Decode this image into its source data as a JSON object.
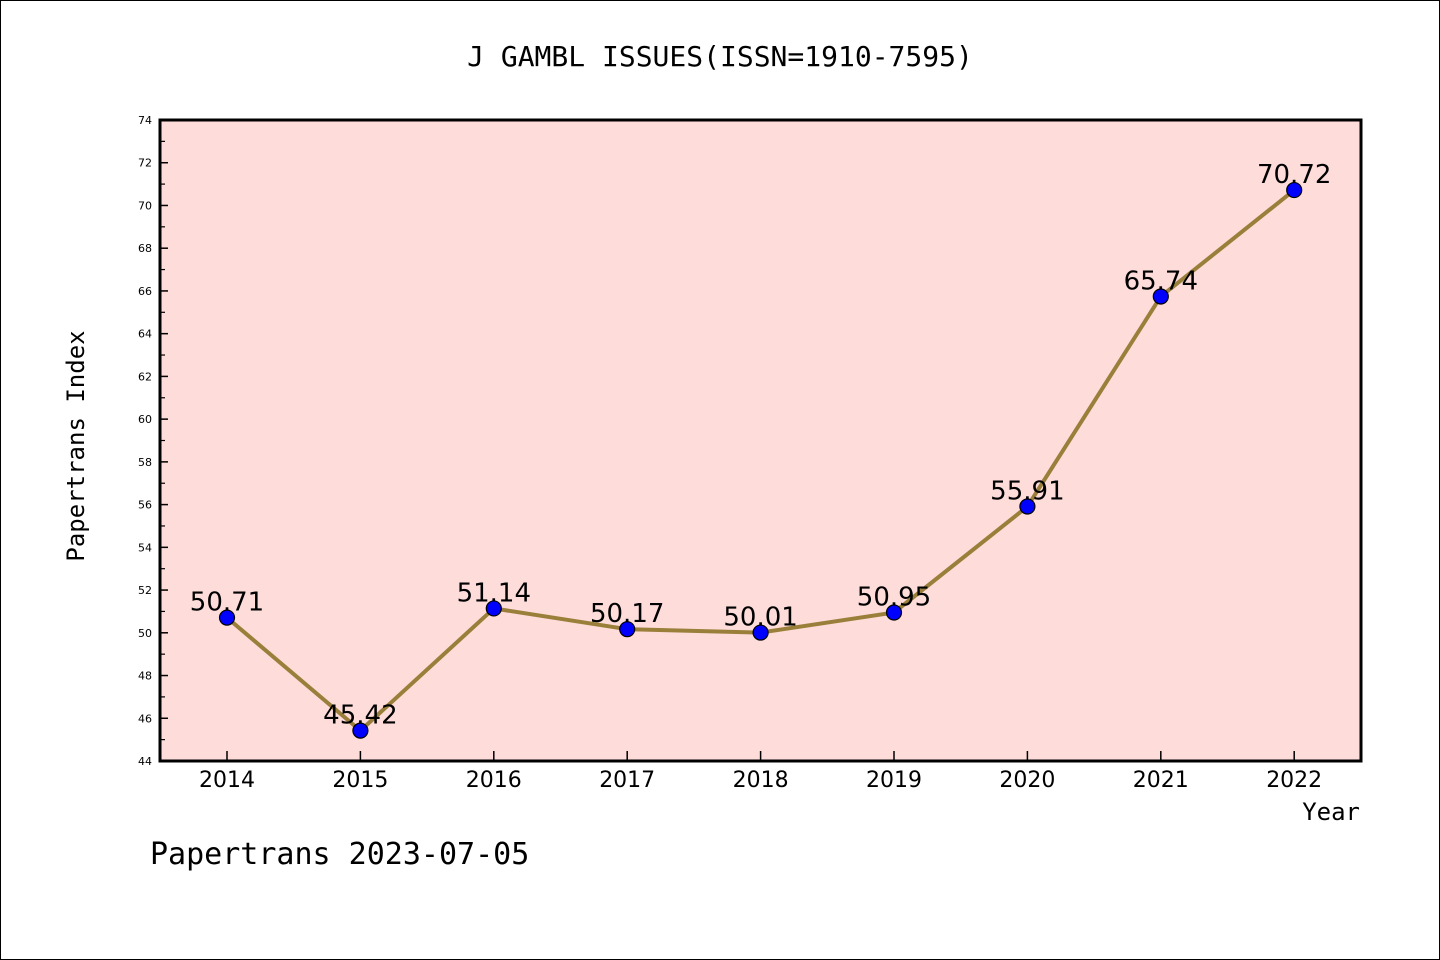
{
  "chart_data": {
    "type": "line",
    "title": "J GAMBL ISSUES(ISSN=1910-7595)",
    "xlabel": "Year",
    "ylabel": "Papertrans Index",
    "categories": [
      "2014",
      "2015",
      "2016",
      "2017",
      "2018",
      "2019",
      "2020",
      "2021",
      "2022"
    ],
    "series": [
      {
        "values": [
          50.71,
          45.42,
          51.14,
          50.17,
          50.01,
          50.95,
          55.91,
          65.74,
          70.72
        ],
        "labels": [
          "50.71",
          "45.42",
          "51.14",
          "50.17",
          "50.01",
          "50.95",
          "55.91",
          "65.74",
          "70.72"
        ]
      }
    ],
    "ylim": [
      44,
      74
    ],
    "yticks": [
      44,
      46,
      48,
      50,
      52,
      54,
      56,
      58,
      60,
      62,
      64,
      66,
      68,
      70,
      72,
      74
    ],
    "grid": false,
    "colors": {
      "plot_background": "#FDDCDA",
      "line": "#9A7F3A",
      "marker": "#0000FF"
    }
  },
  "footer": {
    "text": "Papertrans 2023-07-05"
  }
}
